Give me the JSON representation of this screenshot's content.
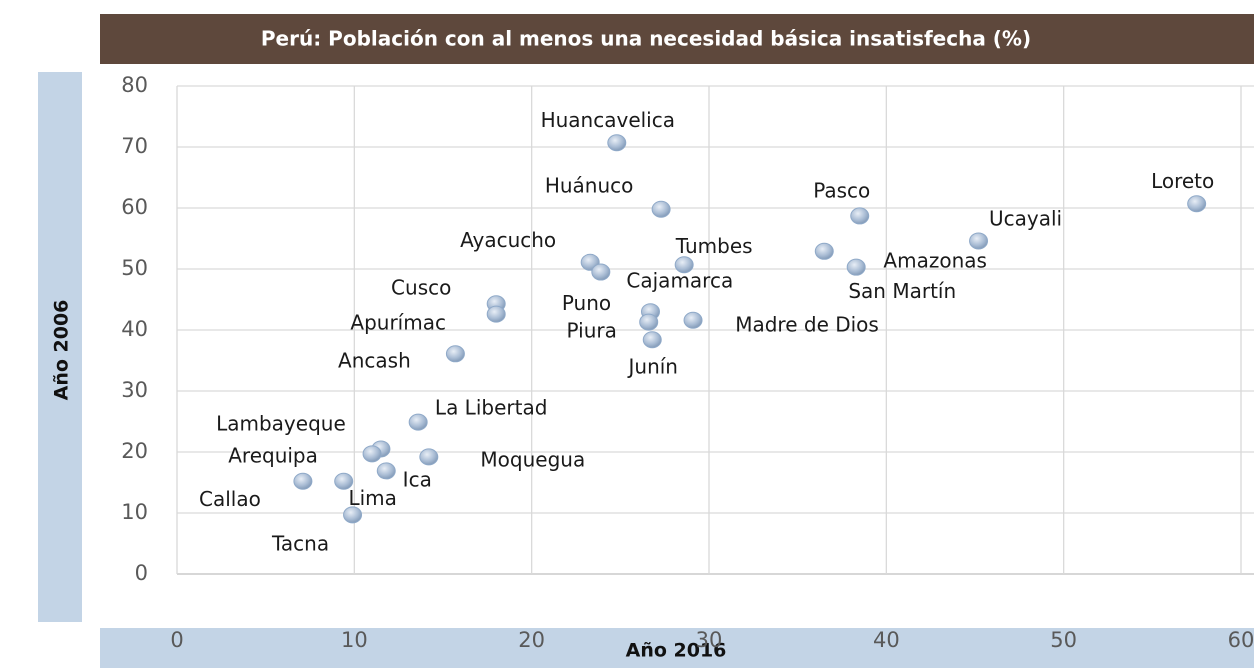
{
  "chart_data": {
    "type": "scatter",
    "title": "Perú: Población con al menos una necesidad básica insatisfecha (%)",
    "x_label": "Año 2016",
    "y_label": "Año 2006",
    "color": "#8fa9c8",
    "xlim": [
      0,
      60
    ],
    "xticks": [
      0,
      10,
      20,
      30,
      40,
      50,
      60
    ],
    "ylim": [
      0,
      80
    ],
    "yticks": [
      0,
      10,
      20,
      30,
      40,
      50,
      60,
      70,
      80
    ],
    "grid": true,
    "labels": [
      "Huancavelica",
      "Huánuco",
      "Loreto",
      "Pasco",
      "Ucayali",
      "Ayacucho",
      "Cajamarca",
      "Tumbes",
      "San Martín",
      "Amazonas",
      "Cusco",
      "Apurímac",
      "Puno",
      "Piura",
      "Junín",
      "Madre de Dios",
      "Ancash",
      "La Libertad",
      "Lambayeque",
      "Arequipa",
      "Moquegua",
      "Ica",
      "Callao",
      "Lima",
      "Tacna"
    ],
    "x": [
      24.8,
      27.3,
      57.5,
      38.5,
      45.2,
      23.3,
      23.9,
      28.6,
      36.5,
      38.3,
      18.0,
      18.0,
      26.7,
      26.6,
      26.8,
      29.1,
      15.7,
      13.6,
      11.5,
      11.0,
      14.2,
      11.8,
      7.1,
      9.4,
      9.9
    ],
    "values": [
      70.7,
      59.8,
      60.7,
      58.7,
      54.6,
      51.1,
      49.5,
      50.7,
      52.9,
      50.3,
      44.3,
      42.6,
      43.0,
      41.3,
      38.4,
      41.6,
      36.1,
      24.9,
      20.5,
      19.7,
      19.2,
      16.9,
      15.2,
      15.2,
      9.7
    ]
  }
}
